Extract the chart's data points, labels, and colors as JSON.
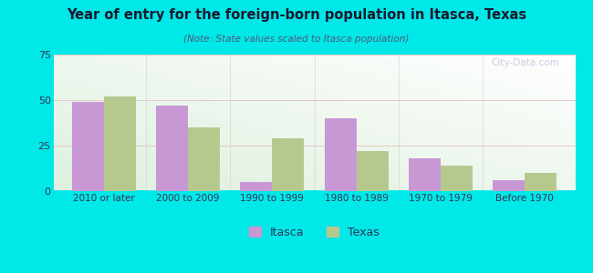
{
  "title": "Year of entry for the foreign-born population in Itasca, Texas",
  "subtitle": "(Note: State values scaled to Itasca population)",
  "categories": [
    "2010 or later",
    "2000 to 2009",
    "1990 to 1999",
    "1980 to 1989",
    "1970 to 1979",
    "Before 1970"
  ],
  "itasca_values": [
    49,
    47,
    5,
    40,
    18,
    6
  ],
  "texas_values": [
    52,
    35,
    29,
    22,
    14,
    10
  ],
  "itasca_color": "#c898d4",
  "texas_color": "#b5c98e",
  "background_outer": "#00e8e8",
  "ylim": [
    0,
    75
  ],
  "yticks": [
    0,
    25,
    50,
    75
  ],
  "bar_width": 0.38,
  "legend_labels": [
    "Itasca",
    "Texas"
  ],
  "watermark": "City-Data.com",
  "title_color": "#1a1a2e",
  "subtitle_color": "#555577"
}
